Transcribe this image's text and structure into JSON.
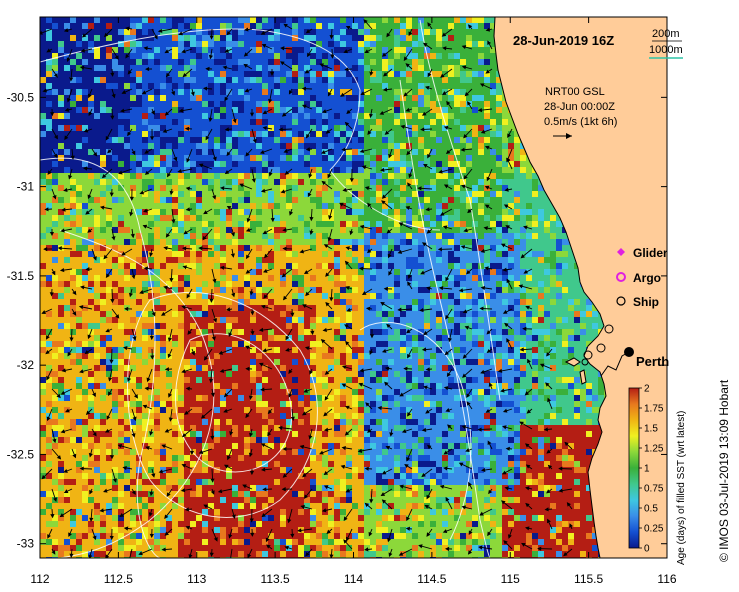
{
  "title": "28-Jun-2019 16Z",
  "depth_legend": {
    "shallow": "200m",
    "deep": "1000m",
    "deep_color": "#2ec4a6"
  },
  "current_info": {
    "line1": "NRT00 GSL",
    "line2": "28-Jun 00:00Z",
    "line3": "0.5m/s (1kt 6h)"
  },
  "legend": [
    {
      "label": "Glider",
      "symbol": "diamond",
      "color": "#e020e0"
    },
    {
      "label": "Argo",
      "symbol": "ring",
      "color": "#e020e0"
    },
    {
      "label": "Ship",
      "symbol": "circle",
      "color": "#000000"
    }
  ],
  "place_label": "Perth",
  "credit": "© IMOS 03-Jul-2019 13:09 Hobart",
  "colorbar": {
    "label": "Age (days) of filled SST (wrt latest)",
    "min": 0,
    "max": 2,
    "ticks": [
      "0",
      "0.25",
      "0.5",
      "0.75",
      "1",
      "1.25",
      "1.5",
      "1.75",
      "2"
    ],
    "colors": [
      "#0a1a8c",
      "#1450d2",
      "#3a8ee8",
      "#3ec8e0",
      "#40c88c",
      "#3ab03a",
      "#8cd83a",
      "#f0f020",
      "#f0b414",
      "#e8781e",
      "#b41e14"
    ]
  },
  "axes": {
    "x_ticks": [
      "112",
      "112.5",
      "113",
      "113.5",
      "114",
      "114.5",
      "115",
      "115.5",
      "116"
    ],
    "x_values": [
      112,
      112.5,
      113,
      113.5,
      114,
      114.5,
      115,
      115.5,
      116
    ],
    "y_ticks": [
      "-30.5",
      "-31",
      "-31.5",
      "-32",
      "-32.5",
      "-33"
    ],
    "y_values": [
      -30.5,
      -31,
      -31.5,
      -32,
      -32.5,
      -33
    ],
    "lon_range": [
      112,
      116.0
    ],
    "lat_range": [
      -33.08,
      -30.05
    ]
  },
  "colors": {
    "land": "#ffcc99",
    "coast": "#000000",
    "contour": "#ffffff"
  }
}
